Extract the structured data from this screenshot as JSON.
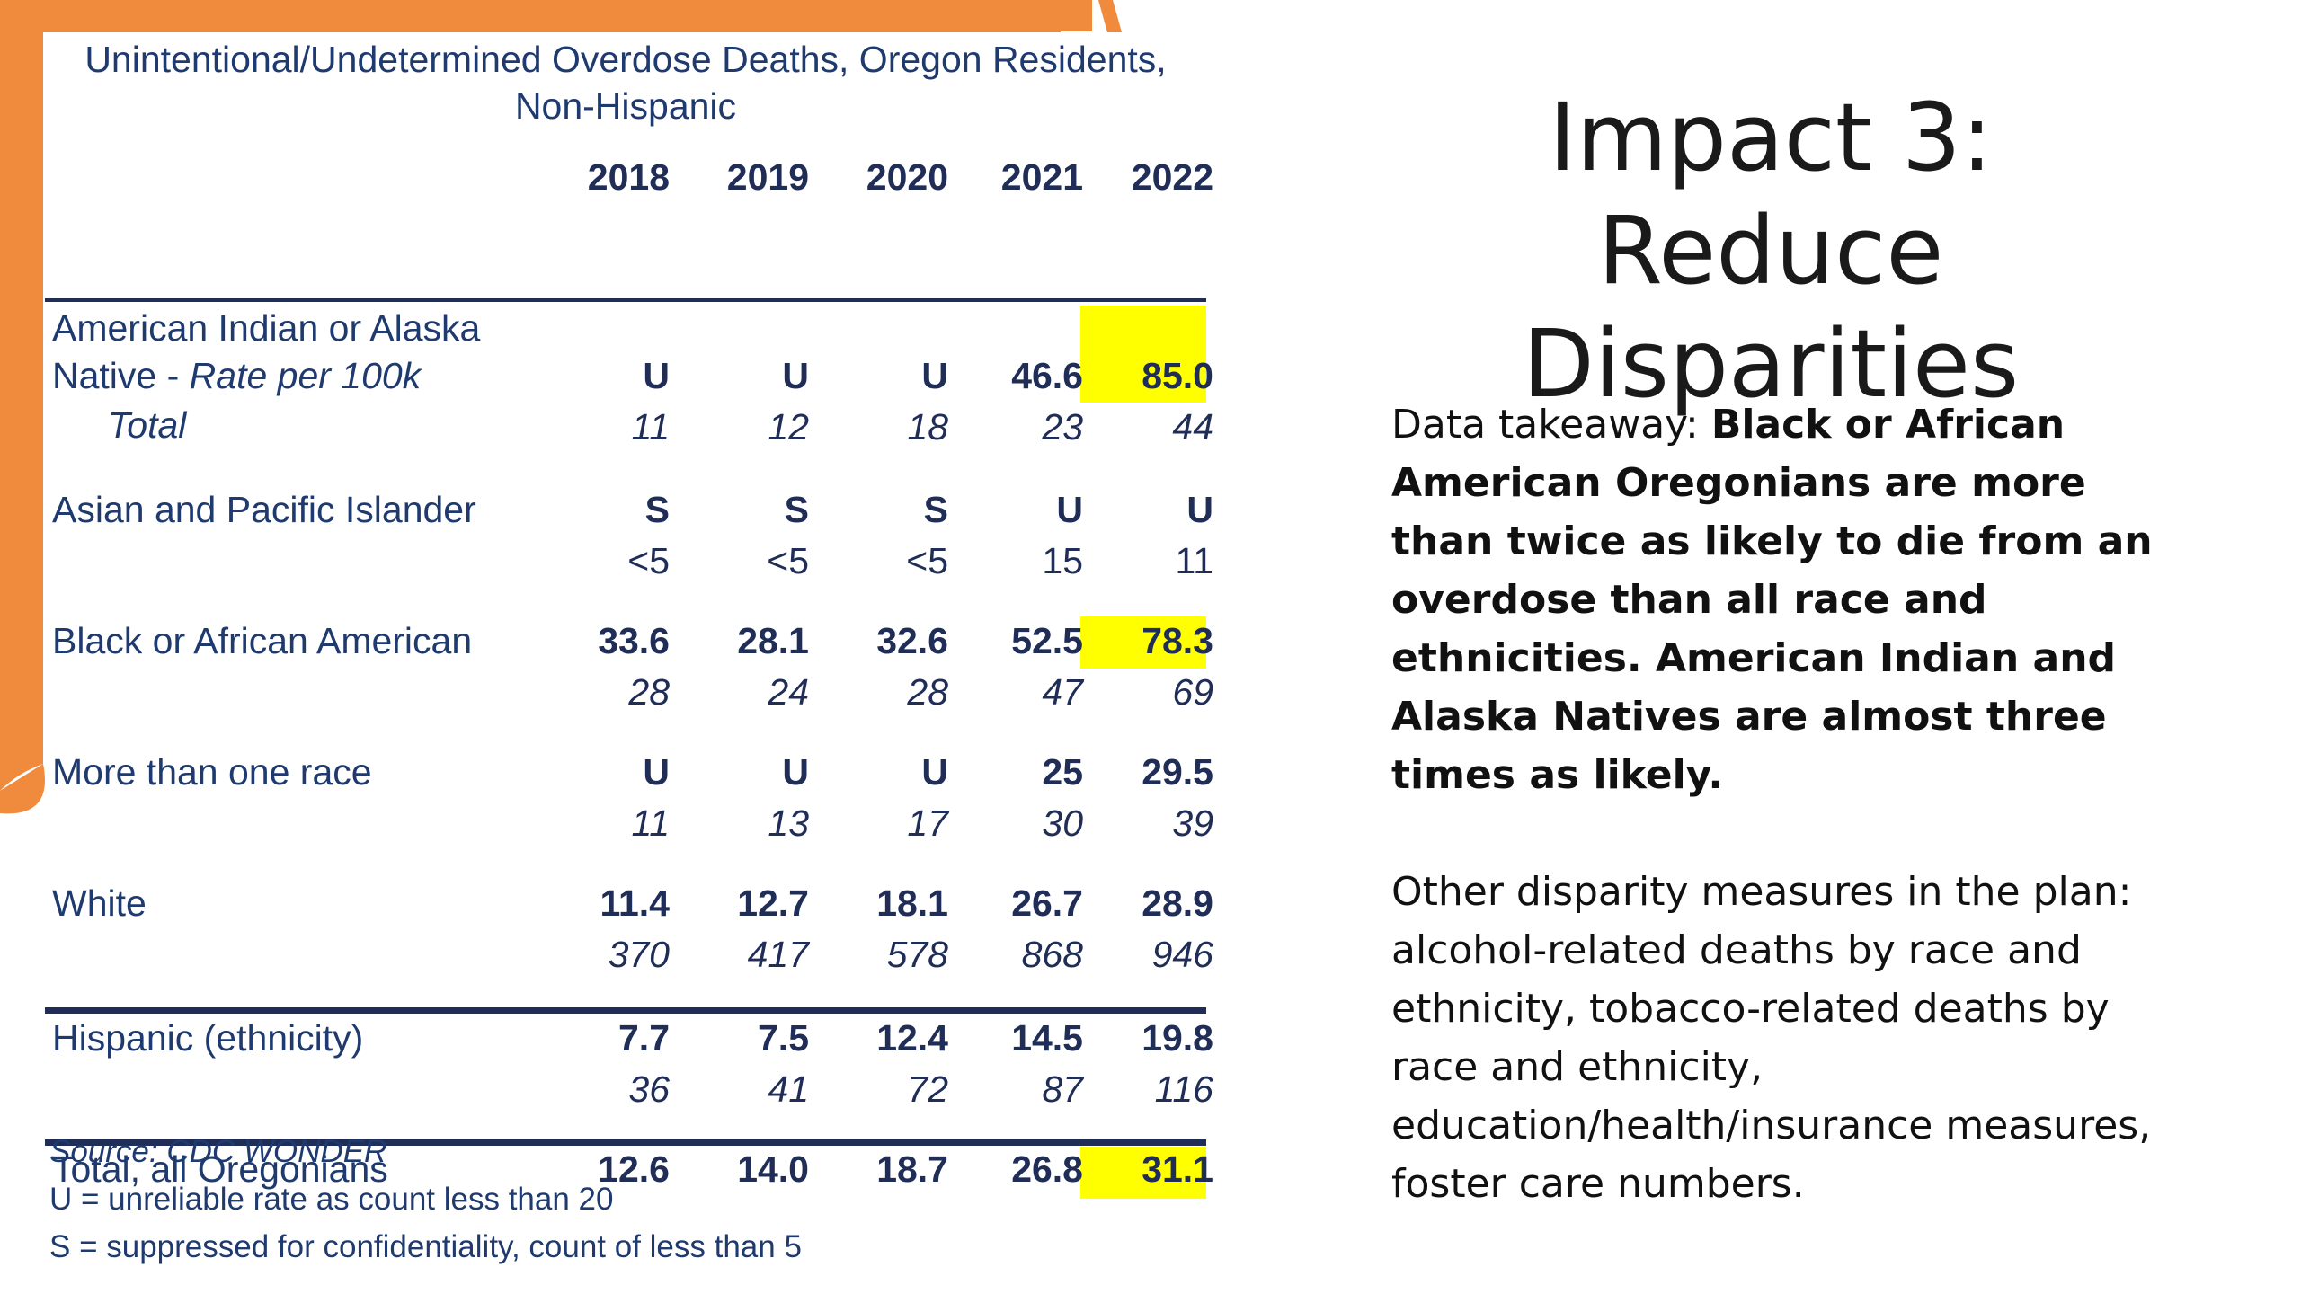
{
  "table": {
    "title_line1": "Unintentional/Undetermined Overdose Deaths, Oregon Residents,",
    "title_line2": "Non-Hispanic",
    "years": [
      "2018",
      "2019",
      "2020",
      "2021",
      "2022"
    ],
    "groups": [
      {
        "label_line1": "American Indian or Alaska",
        "label_line2": "Native - ",
        "label_line2_italic": "Rate per 100k",
        "count_label": "Total",
        "rates": [
          "U",
          "U",
          "U",
          "46.6",
          "85.0"
        ],
        "counts": [
          "11",
          "12",
          "18",
          "23",
          "44"
        ]
      },
      {
        "label": "Asian and Pacific Islander",
        "rates": [
          "S",
          "S",
          "S",
          "U",
          "U"
        ],
        "counts": [
          "<5",
          "<5",
          "<5",
          "15",
          "11"
        ]
      },
      {
        "label": "Black or African American",
        "rates": [
          "33.6",
          "28.1",
          "32.6",
          "52.5",
          "78.3"
        ],
        "counts": [
          "28",
          "24",
          "28",
          "47",
          "69"
        ]
      },
      {
        "label": "More than one race",
        "rates": [
          "U",
          "U",
          "U",
          "25",
          "29.5"
        ],
        "counts": [
          "11",
          "13",
          "17",
          "30",
          "39"
        ]
      },
      {
        "label": "White",
        "rates": [
          "11.4",
          "12.7",
          "18.1",
          "26.7",
          "28.9"
        ],
        "counts": [
          "370",
          "417",
          "578",
          "868",
          "946"
        ]
      },
      {
        "label": "Hispanic (ethnicity)",
        "rates": [
          "7.7",
          "7.5",
          "12.4",
          "14.5",
          "19.8"
        ],
        "counts": [
          "36",
          "41",
          "72",
          "87",
          "116"
        ]
      },
      {
        "label": "Total, all Oregonians",
        "rates": [
          "12.6",
          "14.0",
          "18.7",
          "26.8",
          "31.1"
        ]
      }
    ],
    "highlight_color": "#ffff00"
  },
  "notes": {
    "source": "Source: CDC WONDER",
    "u_note": "U = unreliable rate as count less than 20",
    "s_note": "S = suppressed for confidentiality, count of less than 5"
  },
  "slide": {
    "title_line1": "Impact 3: Reduce",
    "title_line2": "Disparities",
    "takeaway_lead": "Data takeaway: ",
    "takeaway_bold": "Black or African American Oregonians are more than twice as likely to die from an overdose than all race and ethnicities. American Indian and Alaska Natives are almost three times as likely.",
    "other_measures": "Other disparity measures in the plan: alcohol-related deaths by race and ethnicity, tobacco-related deaths by race and ethnicity, education/health/insurance measures, foster care numbers."
  },
  "colors": {
    "accent_orange": "#f08a3c",
    "table_navy": "#1f2d57"
  }
}
